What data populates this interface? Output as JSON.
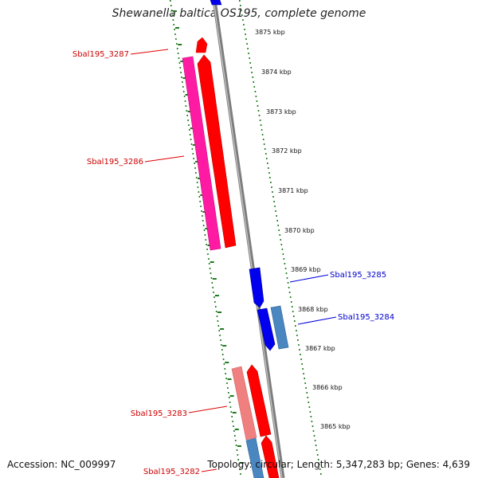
{
  "title": "Shewanella baltica OS195, complete genome",
  "accession_text": "Accession: NC_009997",
  "topology_text": "Topology: circular; Length: 5,347,283 bp; Genes: 4,639",
  "scale_labels": [
    "3875 kbp",
    "3874 kbp",
    "3873 kbp",
    "3872 kbp",
    "3871 kbp",
    "3870 kbp",
    "3869 kbp",
    "3868 kbp",
    "3867 kbp",
    "3866 kbp",
    "3865 kbp"
  ],
  "colors": {
    "backbone": "#8a8a8a",
    "ticks": "#1f7a1f",
    "forward_gene": "#ff0000",
    "forward_label": "#cc0000",
    "reverse_gene": "#0000ee",
    "reverse_label": "#0000cc",
    "magenta_gene": "#ff1aa3",
    "pink_gene": "#f08080",
    "steel_gene": "#4a86c0"
  },
  "genes": [
    {
      "name": "Sbal195_3287",
      "strand": "+"
    },
    {
      "name": "Sbal195_3286",
      "strand": "+"
    },
    {
      "name": "Sbal195_3285",
      "strand": "-"
    },
    {
      "name": "Sbal195_3284",
      "strand": "-"
    },
    {
      "name": "Sbal195_3283",
      "strand": "+"
    },
    {
      "name": "Sbal195_3282",
      "strand": "+"
    }
  ]
}
